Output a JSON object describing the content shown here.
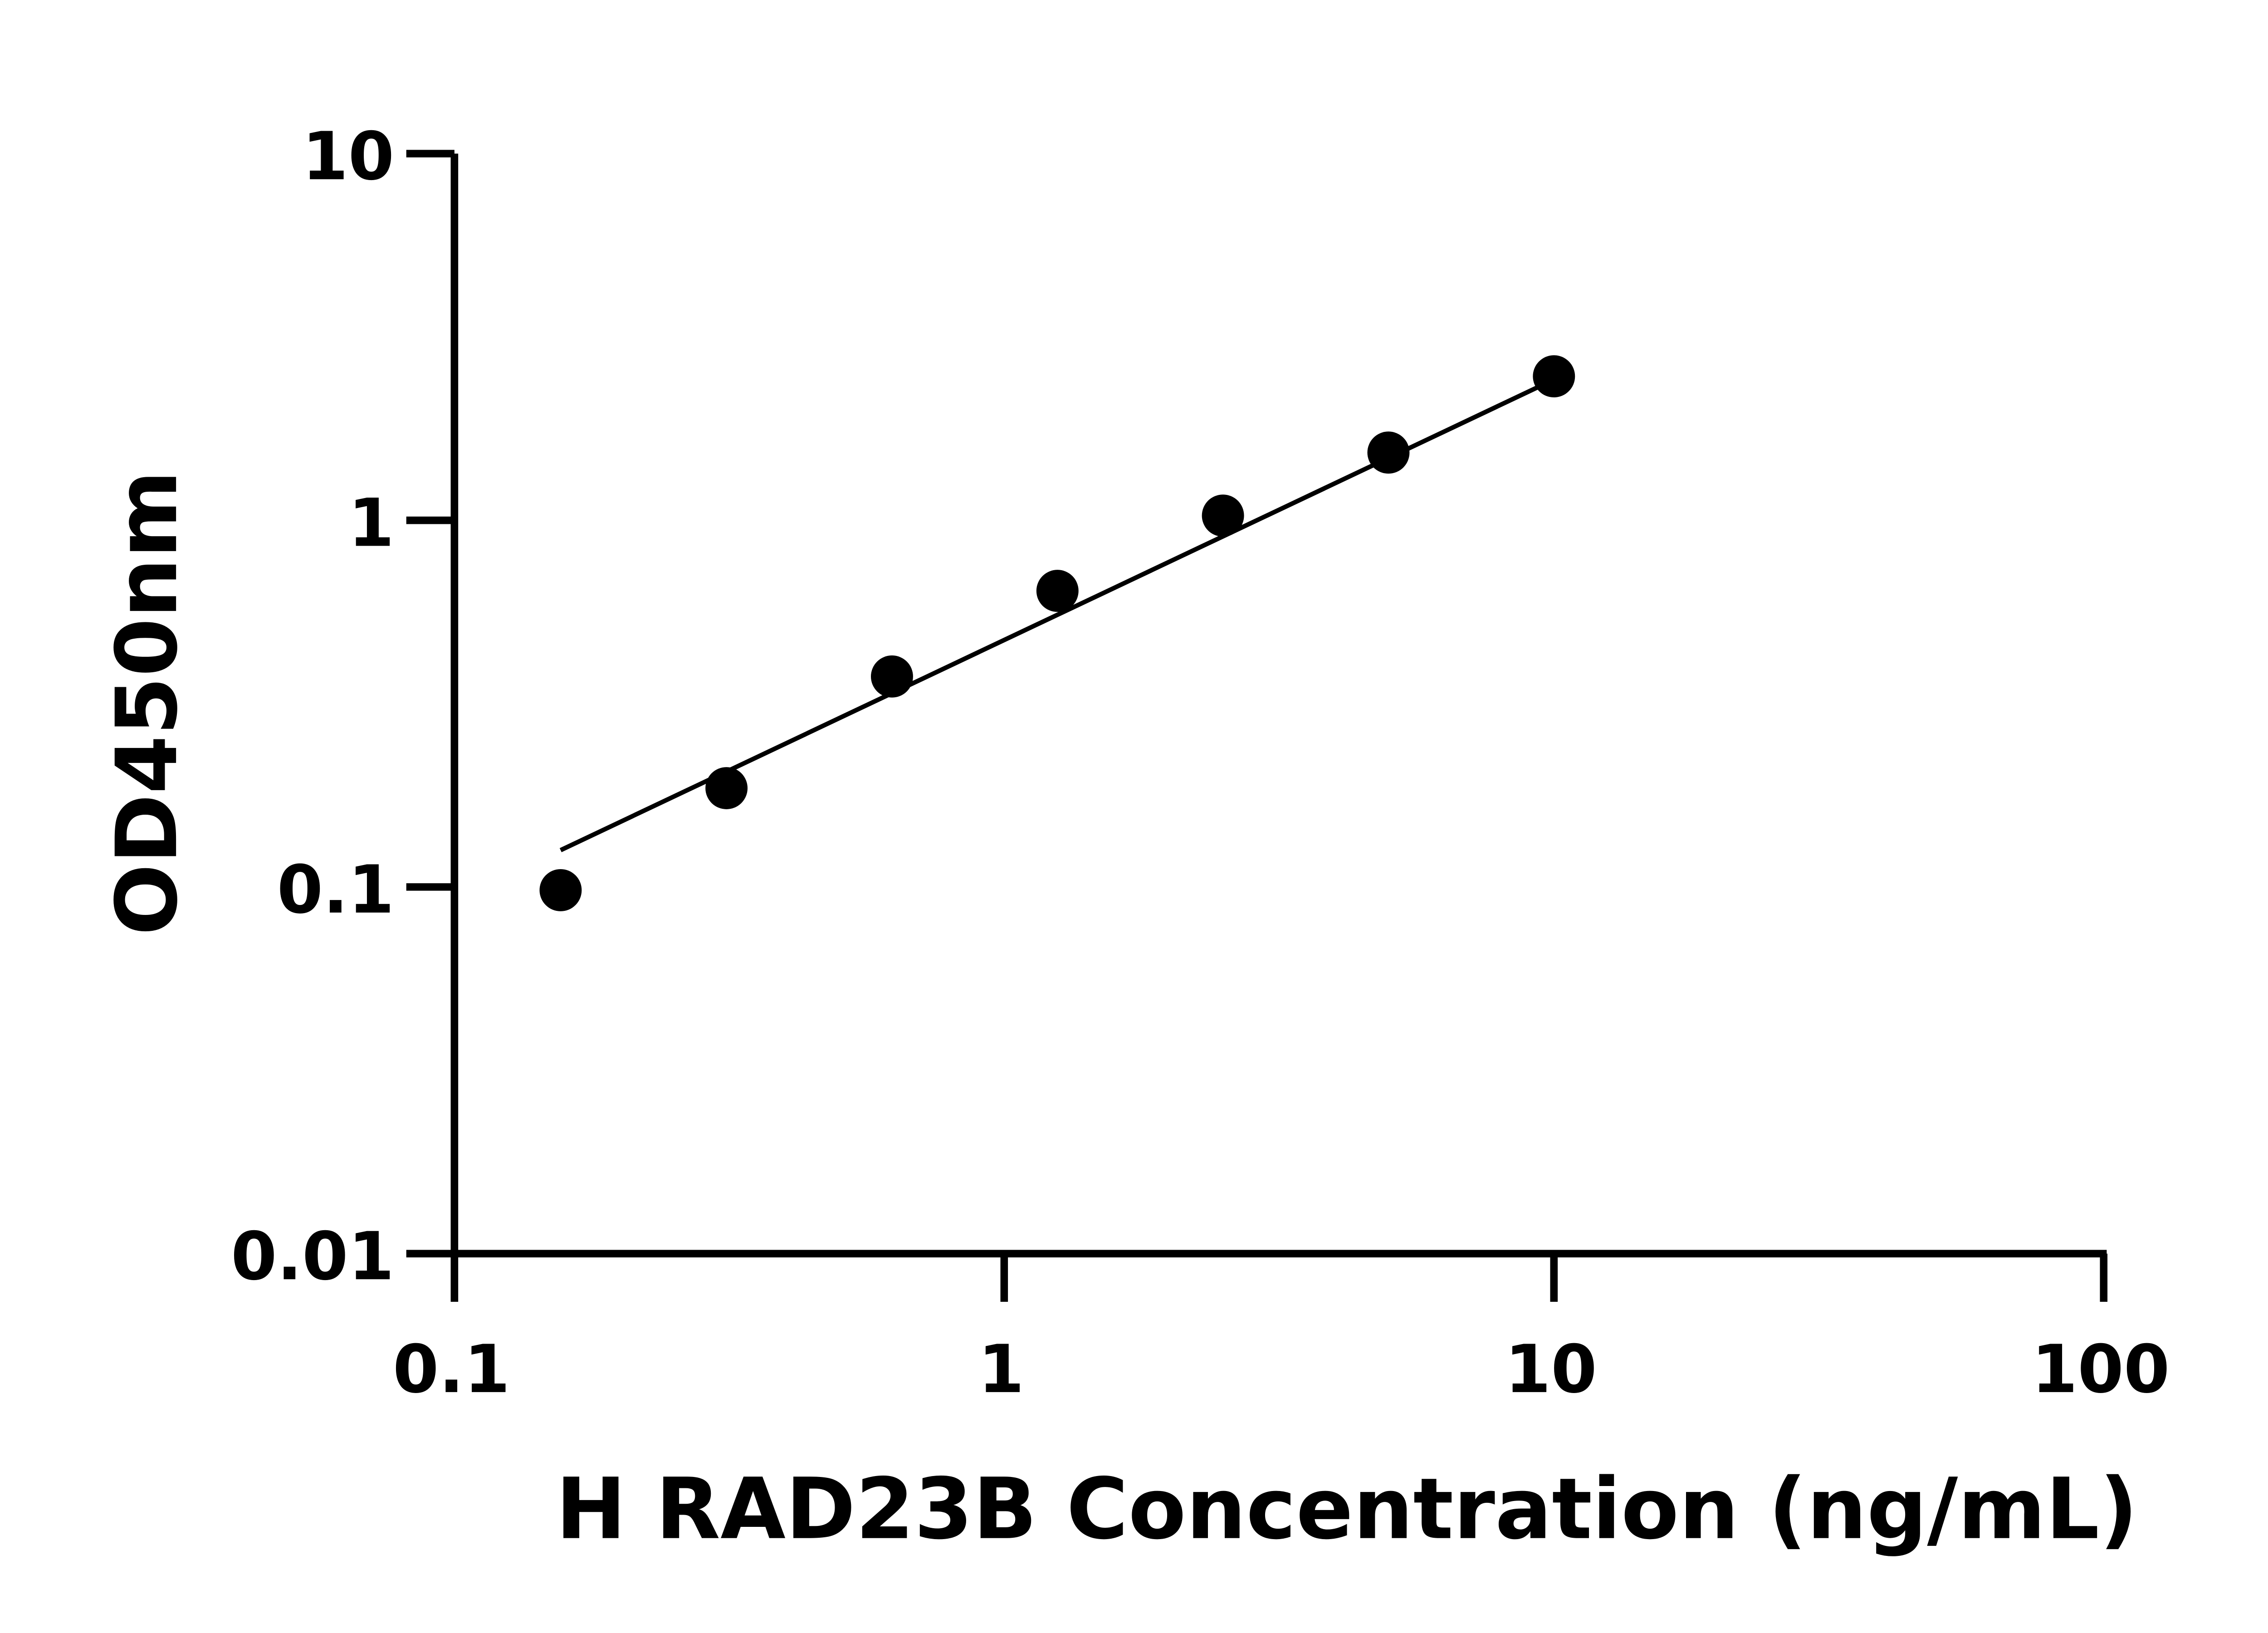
{
  "chart_data": {
    "type": "scatter",
    "title": "",
    "xlabel": "H RAD23B Concentration (ng/mL)",
    "ylabel": "OD450nm",
    "xscale": "log",
    "yscale": "log",
    "xlim": [
      0.1,
      100
    ],
    "ylim": [
      0.01,
      10
    ],
    "xticks": [
      0.1,
      1,
      10,
      100
    ],
    "xtick_labels": [
      "0.1",
      "1",
      "10",
      "100"
    ],
    "yticks": [
      0.01,
      0.1,
      1,
      10
    ],
    "ytick_labels": [
      "0.01",
      "0.1",
      "1",
      "10"
    ],
    "grid": false,
    "points": {
      "x": [
        0.156,
        0.3125,
        0.625,
        1.25,
        2.5,
        5,
        10
      ],
      "y": [
        0.098,
        0.186,
        0.375,
        0.642,
        1.03,
        1.53,
        2.47
      ]
    },
    "fit_line": {
      "x": [
        0.156,
        10
      ],
      "y": [
        0.126,
        2.42
      ]
    },
    "colors": {
      "marker": "#000000",
      "line": "#000000",
      "axis": "#000000"
    }
  }
}
